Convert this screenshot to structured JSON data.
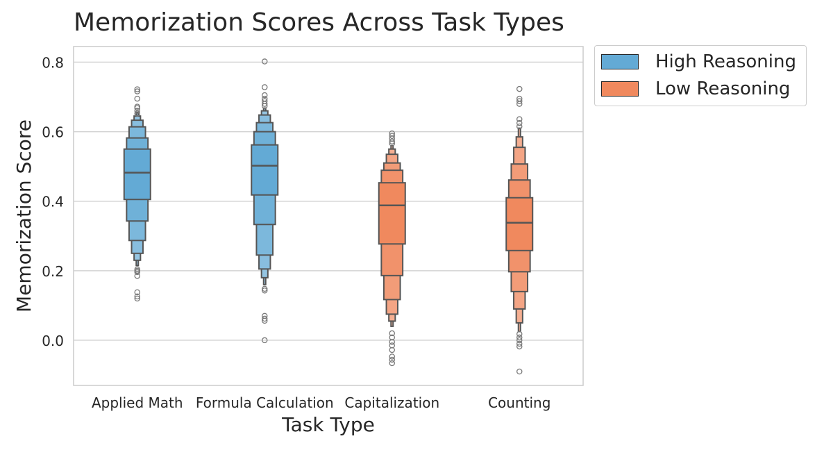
{
  "chart_data": {
    "type": "boxen",
    "title": "Memorization Scores Across Task Types",
    "xlabel": "Task Type",
    "ylabel": "Memorization Score",
    "ylim": [
      -0.13,
      0.845
    ],
    "yticks": [
      0.0,
      0.2,
      0.4,
      0.6,
      0.8
    ],
    "ytick_labels": [
      "0.0",
      "0.2",
      "0.4",
      "0.6",
      "0.8"
    ],
    "grid": true,
    "legend_position": "outside-top-right",
    "series": [
      {
        "name": "High Reasoning",
        "color": "#63aad5"
      },
      {
        "name": "Low Reasoning",
        "color": "#f0895e"
      }
    ],
    "categories": [
      {
        "label": "Applied Math",
        "series": "High Reasoning",
        "median": 0.482,
        "levels": [
          [
            0.405,
            0.55
          ],
          [
            0.343,
            0.582
          ],
          [
            0.287,
            0.614
          ],
          [
            0.25,
            0.633
          ],
          [
            0.23,
            0.645
          ],
          [
            0.215,
            0.655
          ]
        ],
        "outliers": [
          0.722,
          0.716,
          0.695,
          0.672,
          0.668,
          0.66,
          0.652,
          0.204,
          0.2,
          0.196,
          0.185,
          0.138,
          0.126,
          0.12
        ]
      },
      {
        "label": "Formula Calculation",
        "series": "High Reasoning",
        "median": 0.502,
        "levels": [
          [
            0.418,
            0.562
          ],
          [
            0.333,
            0.6
          ],
          [
            0.245,
            0.626
          ],
          [
            0.205,
            0.648
          ],
          [
            0.18,
            0.66
          ],
          [
            0.16,
            0.668
          ]
        ],
        "outliers": [
          0.802,
          0.728,
          0.705,
          0.695,
          0.688,
          0.68,
          0.674,
          0.148,
          0.143,
          0.07,
          0.062,
          0.056,
          0.0
        ]
      },
      {
        "label": "Capitalization",
        "series": "Low Reasoning",
        "median": 0.388,
        "levels": [
          [
            0.277,
            0.453
          ],
          [
            0.186,
            0.489
          ],
          [
            0.117,
            0.51
          ],
          [
            0.075,
            0.535
          ],
          [
            0.055,
            0.55
          ],
          [
            0.04,
            0.56
          ]
        ],
        "outliers": [
          0.595,
          0.588,
          0.58,
          0.572,
          0.566,
          0.02,
          0.008,
          -0.005,
          -0.015,
          -0.028,
          -0.047,
          -0.056,
          -0.066
        ]
      },
      {
        "label": "Counting",
        "series": "Low Reasoning",
        "median": 0.338,
        "levels": [
          [
            0.258,
            0.41
          ],
          [
            0.197,
            0.461
          ],
          [
            0.14,
            0.507
          ],
          [
            0.09,
            0.555
          ],
          [
            0.05,
            0.585
          ],
          [
            0.025,
            0.61
          ]
        ],
        "outliers": [
          0.723,
          0.695,
          0.688,
          0.68,
          0.636,
          0.625,
          0.615,
          0.018,
          0.008,
          0.0,
          -0.01,
          -0.018,
          -0.09
        ]
      }
    ]
  }
}
